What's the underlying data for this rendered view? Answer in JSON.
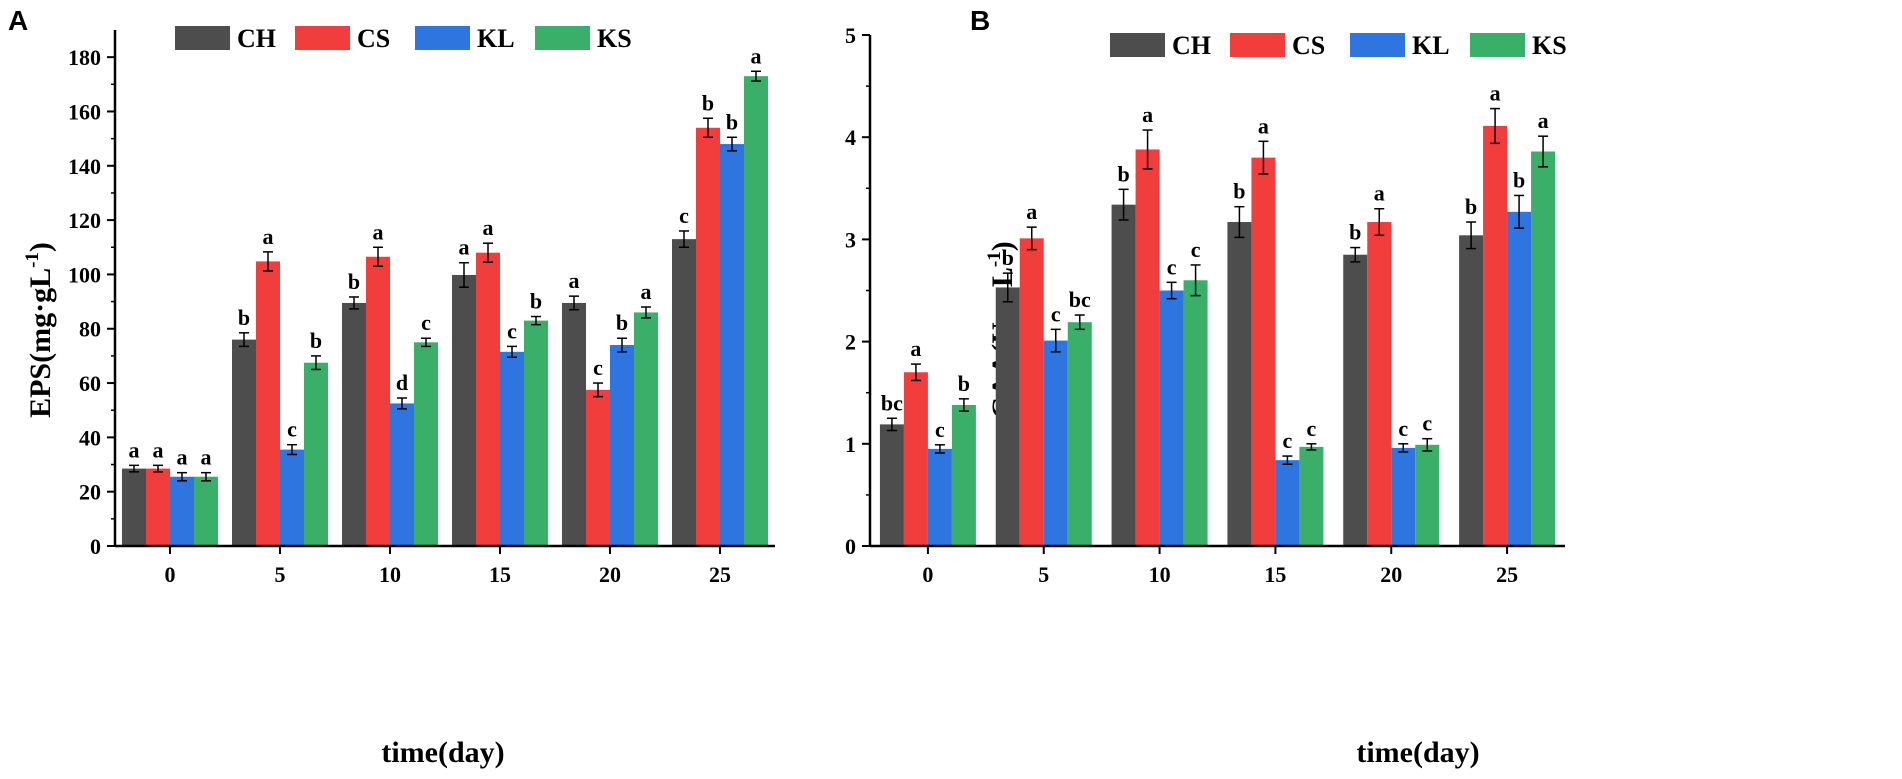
{
  "colors": {
    "CH": "#4d4d4d",
    "CS": "#f23d3d",
    "KL": "#2e75e0",
    "KS": "#3aaf6a",
    "axis": "#000000"
  },
  "chart_data": [
    {
      "type": "bar",
      "panel": "A",
      "xlabel": "time(day)",
      "ylabel_main": "EPS(mg·gL",
      "ylabel_sup": "-1",
      "ylabel_close": ")",
      "ylim": [
        0,
        190
      ],
      "yticks": [
        0,
        20,
        40,
        60,
        80,
        100,
        120,
        140,
        160,
        180
      ],
      "categories": [
        "0",
        "5",
        "10",
        "15",
        "20",
        "25"
      ],
      "legend": [
        "CH",
        "CS",
        "KL",
        "KS"
      ],
      "legend_position": "top",
      "series": [
        {
          "name": "CH",
          "values": [
            28.5,
            76,
            89.5,
            99.8,
            89.5,
            113
          ],
          "errors": [
            1.2,
            2.5,
            2.2,
            4.5,
            2.5,
            3
          ],
          "labels": [
            "a",
            "b",
            "b",
            "a",
            "a",
            "c"
          ]
        },
        {
          "name": "CS",
          "values": [
            28.5,
            104.8,
            106.5,
            108,
            57.5,
            154
          ],
          "errors": [
            1.2,
            3.5,
            3.5,
            3.5,
            2.5,
            3.5
          ],
          "labels": [
            "a",
            "a",
            "a",
            "a",
            "c",
            "b"
          ]
        },
        {
          "name": "KL",
          "values": [
            25.5,
            35.5,
            52.5,
            71.5,
            74,
            148
          ],
          "errors": [
            1.5,
            1.8,
            2,
            2,
            2.5,
            2.5
          ],
          "labels": [
            "a",
            "c",
            "d",
            "c",
            "b",
            "b"
          ]
        },
        {
          "name": "KS",
          "values": [
            25.5,
            67.5,
            75,
            83,
            86,
            173
          ],
          "errors": [
            1.5,
            2.5,
            1.5,
            1.5,
            2,
            1.8
          ],
          "labels": [
            "a",
            "b",
            "c",
            "b",
            "a",
            "a"
          ]
        }
      ]
    },
    {
      "type": "bar",
      "panel": "B",
      "xlabel": "time(day)",
      "ylabel_main": "CAA(U·mL",
      "ylabel_sup": "-1",
      "ylabel_close": ")",
      "ylim": [
        0,
        5
      ],
      "yticks": [
        0,
        1,
        2,
        3,
        4,
        5
      ],
      "categories": [
        "0",
        "5",
        "10",
        "15",
        "20",
        "25"
      ],
      "legend": [
        "CH",
        "CS",
        "KL",
        "KS"
      ],
      "legend_position": "top",
      "series": [
        {
          "name": "CH",
          "values": [
            1.19,
            2.53,
            3.34,
            3.17,
            2.85,
            3.04
          ],
          "errors": [
            0.06,
            0.14,
            0.15,
            0.15,
            0.07,
            0.13
          ],
          "labels": [
            "bc",
            "b",
            "b",
            "b",
            "b",
            "b"
          ]
        },
        {
          "name": "CS",
          "values": [
            1.7,
            3.01,
            3.88,
            3.8,
            3.17,
            4.11
          ],
          "errors": [
            0.08,
            0.11,
            0.19,
            0.16,
            0.13,
            0.17
          ],
          "labels": [
            "a",
            "a",
            "a",
            "a",
            "a",
            "a"
          ]
        },
        {
          "name": "KL",
          "values": [
            0.95,
            2.01,
            2.5,
            0.84,
            0.96,
            3.27
          ],
          "errors": [
            0.04,
            0.11,
            0.08,
            0.04,
            0.04,
            0.16
          ],
          "labels": [
            "c",
            "c",
            "c",
            "c",
            "c",
            "b"
          ]
        },
        {
          "name": "KS",
          "values": [
            1.38,
            2.19,
            2.6,
            0.97,
            0.99,
            3.86
          ],
          "errors": [
            0.06,
            0.07,
            0.15,
            0.03,
            0.06,
            0.15
          ],
          "labels": [
            "b",
            "bc",
            "c",
            "c",
            "c",
            "a"
          ]
        }
      ]
    }
  ]
}
